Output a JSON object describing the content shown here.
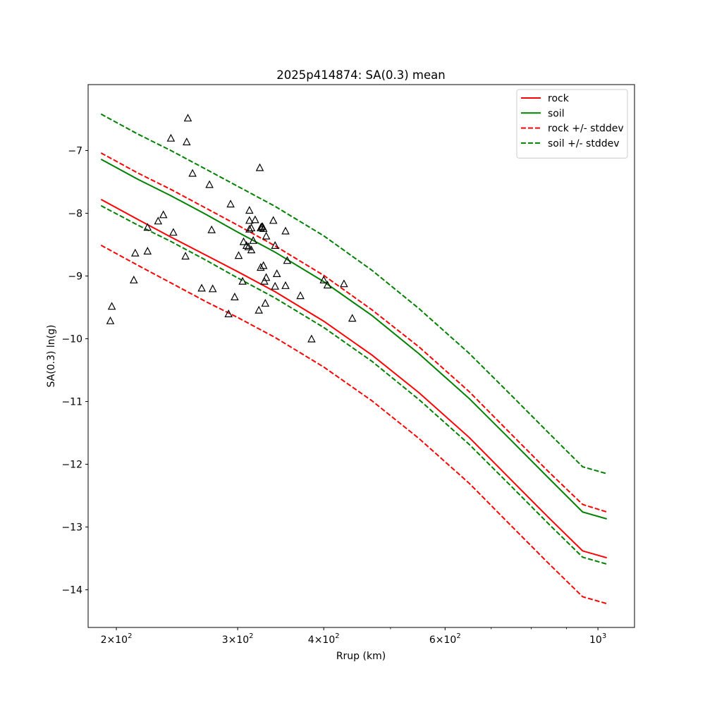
{
  "chart_data": {
    "type": "line",
    "title": "2025p414874: SA(0.3) mean",
    "xlabel": "Rrup (km)",
    "ylabel": "SA(0.3) ln(g)",
    "xscale": "log",
    "xlim": [
      182,
      1130
    ],
    "ylim": [
      -14.6,
      -5.95
    ],
    "grid": false,
    "legend_position": "top-right",
    "x_ticks": [
      {
        "value": 200,
        "base": "2",
        "exp": "2"
      },
      {
        "value": 300,
        "base": "3",
        "exp": "2"
      },
      {
        "value": 400,
        "base": "4",
        "exp": "2"
      },
      {
        "value": 600,
        "base": "6",
        "exp": "2"
      },
      {
        "value": 1000,
        "base": "10",
        "exp": "3",
        "plain": true
      }
    ],
    "x_minor_ticks": [
      500,
      700,
      800,
      900
    ],
    "y_ticks": [
      {
        "value": -7,
        "label": "−7"
      },
      {
        "value": -8,
        "label": "−8"
      },
      {
        "value": -9,
        "label": "−9"
      },
      {
        "value": -10,
        "label": "−10"
      },
      {
        "value": -11,
        "label": "−11"
      },
      {
        "value": -12,
        "label": "−12"
      },
      {
        "value": -13,
        "label": "−13"
      },
      {
        "value": -14,
        "label": "−14"
      }
    ],
    "series": [
      {
        "name": "rock",
        "color": "#ff0000",
        "style": "solid",
        "x": [
          190,
          215,
          240,
          270,
          300,
          340,
          400,
          470,
          550,
          650,
          750,
          850,
          950,
          1030
        ],
        "y": [
          -7.78,
          -8.1,
          -8.38,
          -8.67,
          -8.93,
          -9.25,
          -9.72,
          -10.26,
          -10.86,
          -11.57,
          -12.26,
          -12.86,
          -13.38,
          -13.49
        ]
      },
      {
        "name": "soil",
        "color": "#008000",
        "style": "solid",
        "x": [
          190,
          215,
          240,
          270,
          300,
          340,
          400,
          470,
          550,
          650,
          750,
          850,
          950,
          1030
        ],
        "y": [
          -7.14,
          -7.46,
          -7.72,
          -8.02,
          -8.3,
          -8.62,
          -9.09,
          -9.63,
          -10.24,
          -10.95,
          -11.63,
          -12.23,
          -12.76,
          -12.87
        ]
      },
      {
        "name": "rock +/- stddev",
        "color": "#ff0000",
        "style": "dashed",
        "x": [
          190,
          215,
          240,
          270,
          300,
          340,
          400,
          470,
          550,
          650,
          750,
          850,
          950,
          1030
        ],
        "y": [
          -7.04,
          -7.36,
          -7.62,
          -7.92,
          -8.19,
          -8.52,
          -8.99,
          -9.54,
          -10.13,
          -10.84,
          -11.53,
          -12.13,
          -12.64,
          -12.76
        ]
      },
      {
        "name": "",
        "color": "#ff0000",
        "style": "dashed",
        "x": [
          190,
          215,
          240,
          270,
          300,
          340,
          400,
          470,
          550,
          650,
          750,
          850,
          950,
          1030
        ],
        "y": [
          -8.51,
          -8.83,
          -9.11,
          -9.41,
          -9.66,
          -9.98,
          -10.45,
          -10.99,
          -11.59,
          -12.3,
          -12.99,
          -13.59,
          -14.11,
          -14.22
        ]
      },
      {
        "name": "soil +/- stddev",
        "color": "#008000",
        "style": "dashed",
        "x": [
          190,
          215,
          240,
          270,
          300,
          340,
          400,
          470,
          550,
          650,
          750,
          850,
          950,
          1030
        ],
        "y": [
          -6.42,
          -6.74,
          -7.0,
          -7.3,
          -7.57,
          -7.89,
          -8.36,
          -8.91,
          -9.52,
          -10.23,
          -10.91,
          -11.51,
          -12.04,
          -12.15
        ]
      },
      {
        "name": "",
        "color": "#008000",
        "style": "dashed",
        "x": [
          190,
          215,
          240,
          270,
          300,
          340,
          400,
          470,
          550,
          650,
          750,
          850,
          950,
          1030
        ],
        "y": [
          -7.88,
          -8.19,
          -8.45,
          -8.75,
          -9.03,
          -9.35,
          -9.82,
          -10.36,
          -10.97,
          -11.68,
          -12.36,
          -12.96,
          -13.48,
          -13.59
        ]
      }
    ],
    "observations": {
      "marker": "triangle",
      "x": [
        196,
        197,
        212,
        213,
        222,
        222,
        230,
        234,
        240,
        242,
        253,
        252,
        254,
        258,
        266,
        273,
        275,
        276,
        291,
        293,
        297,
        301,
        306,
        305,
        309,
        311,
        312,
        312,
        312,
        314,
        314,
        316,
        318,
        322,
        323,
        324,
        324,
        326,
        325,
        327,
        328,
        327,
        329,
        330,
        330,
        338,
        340,
        340,
        342,
        352,
        352,
        354,
        370,
        384,
        400,
        405,
        428,
        440
      ],
      "y": [
        -9.72,
        -9.49,
        -9.07,
        -8.64,
        -8.23,
        -8.61,
        -8.13,
        -8.03,
        -6.81,
        -8.31,
        -6.87,
        -8.69,
        -6.49,
        -7.37,
        -9.2,
        -7.55,
        -8.27,
        -9.21,
        -9.61,
        -7.86,
        -9.34,
        -8.68,
        -8.46,
        -9.09,
        -8.52,
        -8.54,
        -8.12,
        -7.96,
        -8.26,
        -8.59,
        -8.24,
        -8.44,
        -8.11,
        -9.55,
        -7.28,
        -8.87,
        -8.24,
        -8.22,
        -8.22,
        -8.84,
        -9.09,
        -8.25,
        -9.44,
        -8.37,
        -9.03,
        -8.12,
        -8.52,
        -9.17,
        -8.97,
        -8.29,
        -9.16,
        -8.76,
        -9.32,
        -10.01,
        -9.07,
        -9.15,
        -9.13,
        -9.68
      ]
    }
  }
}
